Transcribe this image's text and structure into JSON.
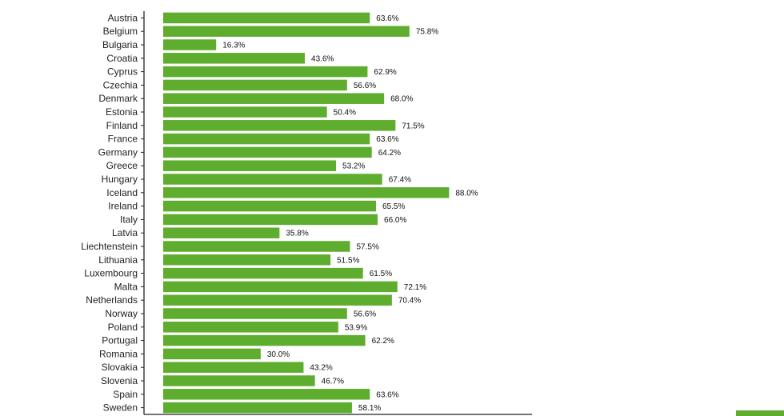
{
  "chart_data": {
    "type": "bar",
    "orientation": "horizontal",
    "categories": [
      "Austria",
      "Belgium",
      "Bulgaria",
      "Croatia",
      "Cyprus",
      "Czechia",
      "Denmark",
      "Estonia",
      "Finland",
      "France",
      "Germany",
      "Greece",
      "Hungary",
      "Iceland",
      "Ireland",
      "Italy",
      "Latvia",
      "Liechtenstein",
      "Lithuania",
      "Luxembourg",
      "Malta",
      "Netherlands",
      "Norway",
      "Poland",
      "Portugal",
      "Romania",
      "Slovakia",
      "Slovenia",
      "Spain",
      "Sweden"
    ],
    "values": [
      63.6,
      75.8,
      16.3,
      43.6,
      62.9,
      56.6,
      68.0,
      50.4,
      71.5,
      63.6,
      64.2,
      53.2,
      67.4,
      88.0,
      65.5,
      66.0,
      35.8,
      57.5,
      51.5,
      61.5,
      72.1,
      70.4,
      56.6,
      53.9,
      62.2,
      30.0,
      43.2,
      46.7,
      63.6,
      58.1
    ],
    "value_labels": [
      "63.6%",
      "75.8%",
      "16.3%",
      "43.6%",
      "62.9%",
      "56.6%",
      "68.0%",
      "50.4%",
      "71.5%",
      "63.6%",
      "64.2%",
      "53.2%",
      "67.4%",
      "88.0%",
      "65.5%",
      "66.0%",
      "35.8%",
      "57.5%",
      "51.5%",
      "61.5%",
      "72.1%",
      "70.4%",
      "56.6%",
      "53.9%",
      "62.2%",
      "30.0%",
      "43.2%",
      "46.7%",
      "63.6%",
      "58.1%"
    ],
    "title": "",
    "xlabel": "",
    "ylabel": "",
    "xlim": [
      0,
      115
    ],
    "grid": false,
    "legend": "none",
    "bar_color": "#5fad2f",
    "axis_color": "#222222"
  }
}
